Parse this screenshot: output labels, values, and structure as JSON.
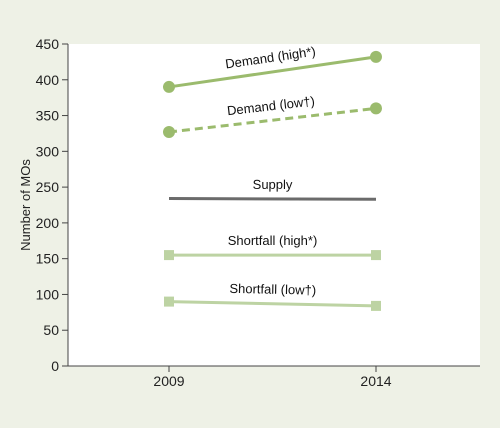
{
  "chart_data": {
    "type": "line",
    "title": "",
    "xlabel": "",
    "ylabel": "Number of MOs",
    "x": [
      "2009",
      "2014"
    ],
    "ylim": [
      0,
      450
    ],
    "yticks": [
      0,
      50,
      100,
      150,
      200,
      250,
      300,
      350,
      400,
      450
    ],
    "grid": false,
    "legend": "none",
    "series": [
      {
        "name": "Demand (high*)",
        "values": [
          390,
          432
        ],
        "color": "#9bbb6d",
        "style": "solid",
        "marker": "circle"
      },
      {
        "name": "Demand (low†)",
        "values": [
          327,
          360
        ],
        "color": "#9bbb6d",
        "style": "dashed",
        "marker": "circle"
      },
      {
        "name": "Supply",
        "values": [
          234,
          233
        ],
        "color": "#6b6b6b",
        "style": "solid",
        "marker": "none"
      },
      {
        "name": "Shortfall (high*)",
        "values": [
          155,
          155
        ],
        "color": "#bdd3a3",
        "style": "solid",
        "marker": "square"
      },
      {
        "name": "Shortfall (low†)",
        "values": [
          90,
          84
        ],
        "color": "#bdd3a3",
        "style": "solid",
        "marker": "square"
      }
    ]
  }
}
